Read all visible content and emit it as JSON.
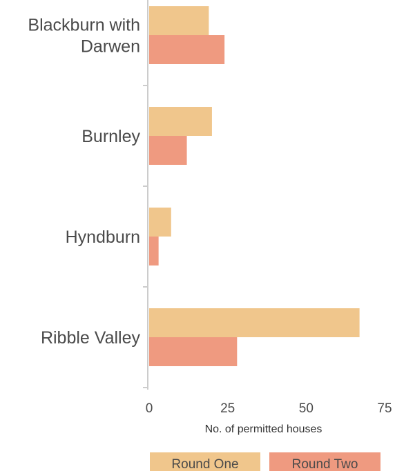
{
  "chart_data": {
    "type": "bar",
    "orientation": "horizontal",
    "categories": [
      "Blackburn with Darwen",
      "Burnley",
      "Hyndburn",
      "Ribble Valley"
    ],
    "category_lines": [
      [
        "Blackburn with",
        "Darwen"
      ],
      [
        "Burnley"
      ],
      [
        "Hyndburn"
      ],
      [
        "Ribble Valley"
      ]
    ],
    "series": [
      {
        "name": "Round One",
        "color": "#f0c68c",
        "values": [
          19,
          20,
          7,
          67
        ]
      },
      {
        "name": "Round Two",
        "color": "#ef9a80",
        "values": [
          24,
          12,
          3,
          28
        ]
      }
    ],
    "xlabel": "No. of permitted houses",
    "xlim": [
      0,
      75
    ],
    "xticks": [
      0,
      25,
      50,
      75
    ],
    "xtick_labels": [
      "0",
      "25",
      "50",
      "75"
    ],
    "grid": false,
    "legend_position": "bottom",
    "axis_color": "#cccccc"
  }
}
